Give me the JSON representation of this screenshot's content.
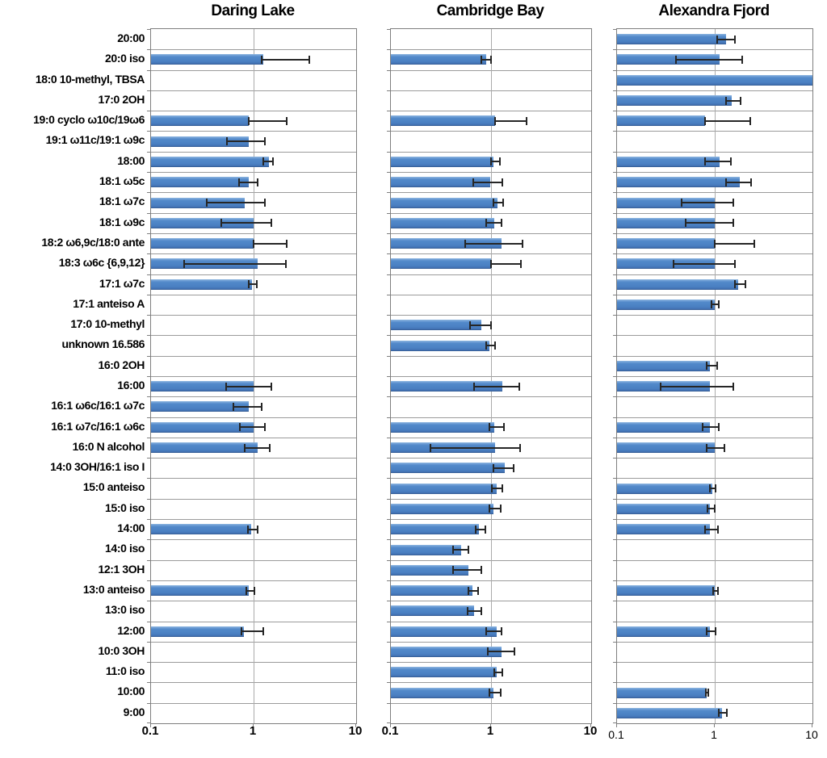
{
  "figure": {
    "kind": "three-panel horizontal bar chart with error bars",
    "bar_fill": "#4a80c2",
    "bar_border": "#38619a",
    "gridline_color": "#9b9b9b",
    "plot_border_color": "#7f7f7f",
    "error_bar_color": "#262626",
    "background": "#ffffff"
  },
  "chart_data": {
    "type": "bar",
    "orientation": "horizontal",
    "xscale": "log",
    "xlim": [
      0.1,
      10
    ],
    "xticks": [
      0.1,
      1,
      10
    ],
    "xtick_labels": [
      "0.1",
      "1",
      "10"
    ],
    "grid": "horizontal lines at every category boundary, vertical line at 1",
    "legend": "none",
    "categories": [
      "20:00",
      "20:0 iso",
      "18:0 10-methyl, TBSA",
      "17:0 2OH",
      "19:0 cyclo ω10c/19ω6",
      "19:1 ω11c/19:1 ω9c",
      "18:00",
      "18:1 ω5c",
      "18:1 ω7c",
      "18:1 ω9c",
      "18:2 ω6,9c/18:0 ante",
      "18:3 ω6c {6,9,12}",
      "17:1 ω7c",
      "17:1 anteiso A",
      "17:0 10-methyl",
      "unknown 16.586",
      "16:0 2OH",
      "16:00",
      "16:1 ω6c/16:1 ω7c",
      "16:1 ω7c/16:1 ω6c",
      "16:0 N alcohol",
      "14:0 3OH/16:1 iso I",
      "15:0 anteiso",
      "15:0 iso",
      "14:00",
      "14:0 iso",
      "12:1 3OH",
      "13:0 anteiso",
      "13:0 iso",
      "12:00",
      "10:0 3OH",
      "11:0 iso",
      "10:00",
      "9:00"
    ],
    "value_format": "[value, err_low, err_high] on log10 ratio scale; null = no bar",
    "series": [
      {
        "name": "Daring Lake",
        "values": [
          null,
          [
            1.25,
            1.2,
            3.5
          ],
          null,
          null,
          [
            0.9,
            0.9,
            2.1
          ],
          [
            0.9,
            0.55,
            1.3
          ],
          [
            1.4,
            1.25,
            1.55
          ],
          [
            0.9,
            0.72,
            1.1
          ],
          [
            0.82,
            0.35,
            1.28
          ],
          [
            1.0,
            0.48,
            1.5
          ],
          [
            1.0,
            1.0,
            2.1
          ],
          [
            1.1,
            0.21,
            2.05
          ],
          [
            0.97,
            0.9,
            1.08
          ],
          null,
          null,
          null,
          null,
          [
            1.0,
            0.54,
            1.5
          ],
          [
            0.9,
            0.64,
            1.2
          ],
          [
            1.0,
            0.73,
            1.3
          ],
          [
            1.1,
            0.82,
            1.43
          ],
          null,
          null,
          null,
          [
            0.95,
            0.88,
            1.1
          ],
          null,
          null,
          [
            0.9,
            0.85,
            1.02
          ],
          null,
          [
            0.8,
            0.76,
            1.25
          ],
          null,
          null,
          null,
          null
        ]
      },
      {
        "name": "Cambridge Bay",
        "values": [
          null,
          [
            0.9,
            0.8,
            1.0
          ],
          null,
          null,
          [
            1.1,
            1.1,
            2.25
          ],
          null,
          [
            1.06,
            1.0,
            1.22
          ],
          [
            0.98,
            0.66,
            1.3
          ],
          [
            1.17,
            1.06,
            1.32
          ],
          [
            1.08,
            0.89,
            1.28
          ],
          [
            1.28,
            0.55,
            2.05
          ],
          [
            1.0,
            1.0,
            2.0
          ],
          null,
          null,
          [
            0.8,
            0.62,
            1.0
          ],
          [
            0.97,
            0.9,
            1.1
          ],
          null,
          [
            1.3,
            0.68,
            1.9
          ],
          null,
          [
            1.08,
            0.96,
            1.35
          ],
          [
            1.1,
            0.25,
            1.95
          ],
          [
            1.37,
            1.06,
            1.68
          ],
          [
            1.14,
            1.02,
            1.3
          ],
          [
            1.05,
            0.97,
            1.25
          ],
          [
            0.75,
            0.7,
            0.87
          ],
          [
            0.5,
            0.42,
            0.6
          ],
          [
            0.6,
            0.42,
            0.8
          ],
          [
            0.65,
            0.6,
            0.74
          ],
          [
            0.68,
            0.58,
            0.8
          ],
          [
            1.14,
            0.9,
            1.28
          ],
          [
            1.28,
            0.92,
            1.7
          ],
          [
            1.14,
            1.08,
            1.3
          ],
          [
            1.06,
            0.97,
            1.25
          ],
          null
        ]
      },
      {
        "name": "Alexandra Fjord",
        "values": [
          [
            1.3,
            1.05,
            1.6
          ],
          [
            1.12,
            0.4,
            1.9
          ],
          [
            10,
            null,
            null
          ],
          [
            1.5,
            1.3,
            1.85
          ],
          [
            0.8,
            0.8,
            2.3
          ],
          null,
          [
            1.12,
            0.8,
            1.45
          ],
          [
            1.8,
            1.3,
            2.35
          ],
          [
            1.0,
            0.46,
            1.55
          ],
          [
            1.0,
            0.5,
            1.55
          ],
          [
            1.0,
            1.0,
            2.55
          ],
          [
            1.0,
            0.38,
            1.6
          ],
          [
            1.75,
            1.6,
            2.05
          ],
          [
            1.0,
            0.93,
            1.1
          ],
          null,
          null,
          [
            0.9,
            0.83,
            1.05
          ],
          [
            0.9,
            0.28,
            1.55
          ],
          null,
          [
            0.9,
            0.75,
            1.1
          ],
          [
            1.0,
            0.82,
            1.25
          ],
          null,
          [
            0.95,
            0.9,
            1.02
          ],
          [
            0.9,
            0.85,
            1.0
          ],
          [
            0.9,
            0.8,
            1.07
          ],
          null,
          null,
          [
            1.0,
            0.97,
            1.07
          ],
          null,
          [
            0.89,
            0.82,
            1.02
          ],
          null,
          null,
          [
            0.83,
            0.81,
            0.86
          ],
          [
            1.18,
            1.1,
            1.32
          ]
        ]
      }
    ]
  }
}
